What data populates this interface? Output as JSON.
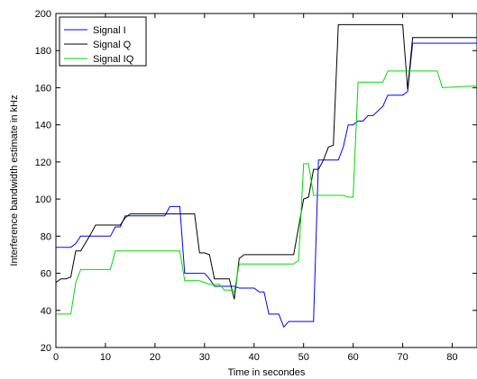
{
  "chart_data": {
    "type": "line",
    "title": "",
    "xlabel": "Time in secondes",
    "ylabel": "Interference bandwidth estimate in kHz",
    "xlim": [
      0,
      85
    ],
    "ylim": [
      20,
      200
    ],
    "xticks": [
      0,
      10,
      20,
      30,
      40,
      50,
      60,
      70,
      80
    ],
    "yticks": [
      20,
      40,
      60,
      80,
      100,
      120,
      140,
      160,
      180,
      200
    ],
    "grid": false,
    "legend_position": "top-left",
    "series": [
      {
        "name": "Signal I",
        "color": "#0000ff",
        "x": [
          0,
          3,
          4,
          5,
          11,
          12,
          13,
          14,
          15,
          22,
          23,
          25,
          26,
          30,
          31,
          32,
          36,
          37,
          40,
          41,
          42,
          43,
          45,
          46,
          47,
          52,
          53,
          54,
          57,
          58,
          59,
          60,
          61,
          62,
          63,
          64,
          66,
          67,
          70,
          71,
          72,
          85
        ],
        "y": [
          74,
          74,
          76,
          80,
          80,
          85,
          85,
          91,
          91,
          91,
          96,
          96,
          60,
          60,
          57,
          53,
          53,
          52,
          52,
          50,
          50,
          38,
          38,
          31,
          34,
          34,
          121,
          121,
          121,
          128,
          140,
          140,
          142,
          142,
          145,
          145,
          150,
          156,
          156,
          158,
          184,
          184
        ]
      },
      {
        "name": "Signal Q",
        "color": "#000000",
        "x": [
          0,
          1,
          2,
          3,
          4,
          5,
          7,
          8,
          12,
          13,
          14,
          15,
          28,
          29,
          30,
          31,
          32,
          35,
          36,
          37,
          38,
          40,
          48,
          50,
          51,
          52,
          53,
          54,
          55,
          56,
          57,
          70,
          71,
          72,
          85
        ],
        "y": [
          55,
          57,
          57,
          58,
          72,
          72,
          81,
          86,
          86,
          86,
          90,
          92,
          92,
          71,
          71,
          70,
          57,
          57,
          46,
          68,
          70,
          70,
          70,
          100,
          101,
          116,
          116,
          121,
          128,
          129,
          194,
          194,
          159,
          187,
          187
        ]
      },
      {
        "name": "Signal IQ",
        "color": "#00dd00",
        "x": [
          0,
          3,
          4,
          5,
          11,
          12,
          24,
          25,
          26,
          29,
          30,
          31,
          33,
          34,
          35,
          36,
          37,
          48,
          49,
          50,
          51,
          52,
          53,
          58,
          59,
          60,
          61,
          66,
          67,
          77,
          78,
          85
        ],
        "y": [
          38,
          38,
          55,
          62,
          62,
          72,
          72,
          72,
          56,
          56,
          55,
          54,
          54,
          51,
          51,
          50,
          65,
          65,
          67,
          119,
          119,
          102,
          102,
          102,
          101,
          101,
          163,
          163,
          169,
          169,
          160,
          161
        ]
      }
    ]
  }
}
